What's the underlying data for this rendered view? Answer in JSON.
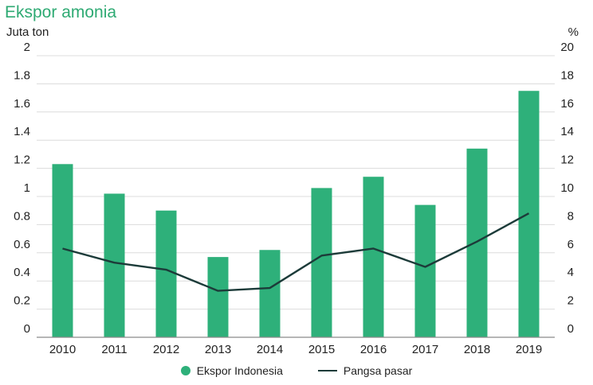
{
  "chart_data": {
    "type": "bar",
    "title": "Ekspor amonia",
    "ylabel": "Juta ton",
    "y2label": "%",
    "categories": [
      "2010",
      "2011",
      "2012",
      "2013",
      "2014",
      "2015",
      "2016",
      "2017",
      "2018",
      "2019"
    ],
    "ylim": [
      0,
      2
    ],
    "yticks": [
      "0",
      "0.2",
      "0.4",
      "0.6",
      "0.8",
      "1",
      "1.2",
      "1.4",
      "1.6",
      "1.8",
      "2"
    ],
    "y2lim": [
      0,
      20
    ],
    "y2ticks": [
      "0",
      "2",
      "4",
      "6",
      "8",
      "10",
      "12",
      "14",
      "16",
      "18",
      "20"
    ],
    "grid": true,
    "legend_position": "bottom",
    "series": [
      {
        "name": "Ekspor Indonesia",
        "type": "bar",
        "axis": "left",
        "color": "#2eb07a",
        "values": [
          1.23,
          1.02,
          0.9,
          0.57,
          0.62,
          1.06,
          1.14,
          0.94,
          1.34,
          1.75
        ]
      },
      {
        "name": "Pangsa pasar",
        "type": "line",
        "axis": "right",
        "color": "#1c3b39",
        "values": [
          6.3,
          5.3,
          4.8,
          3.3,
          3.5,
          5.8,
          6.3,
          5.0,
          6.8,
          8.8
        ]
      }
    ]
  }
}
